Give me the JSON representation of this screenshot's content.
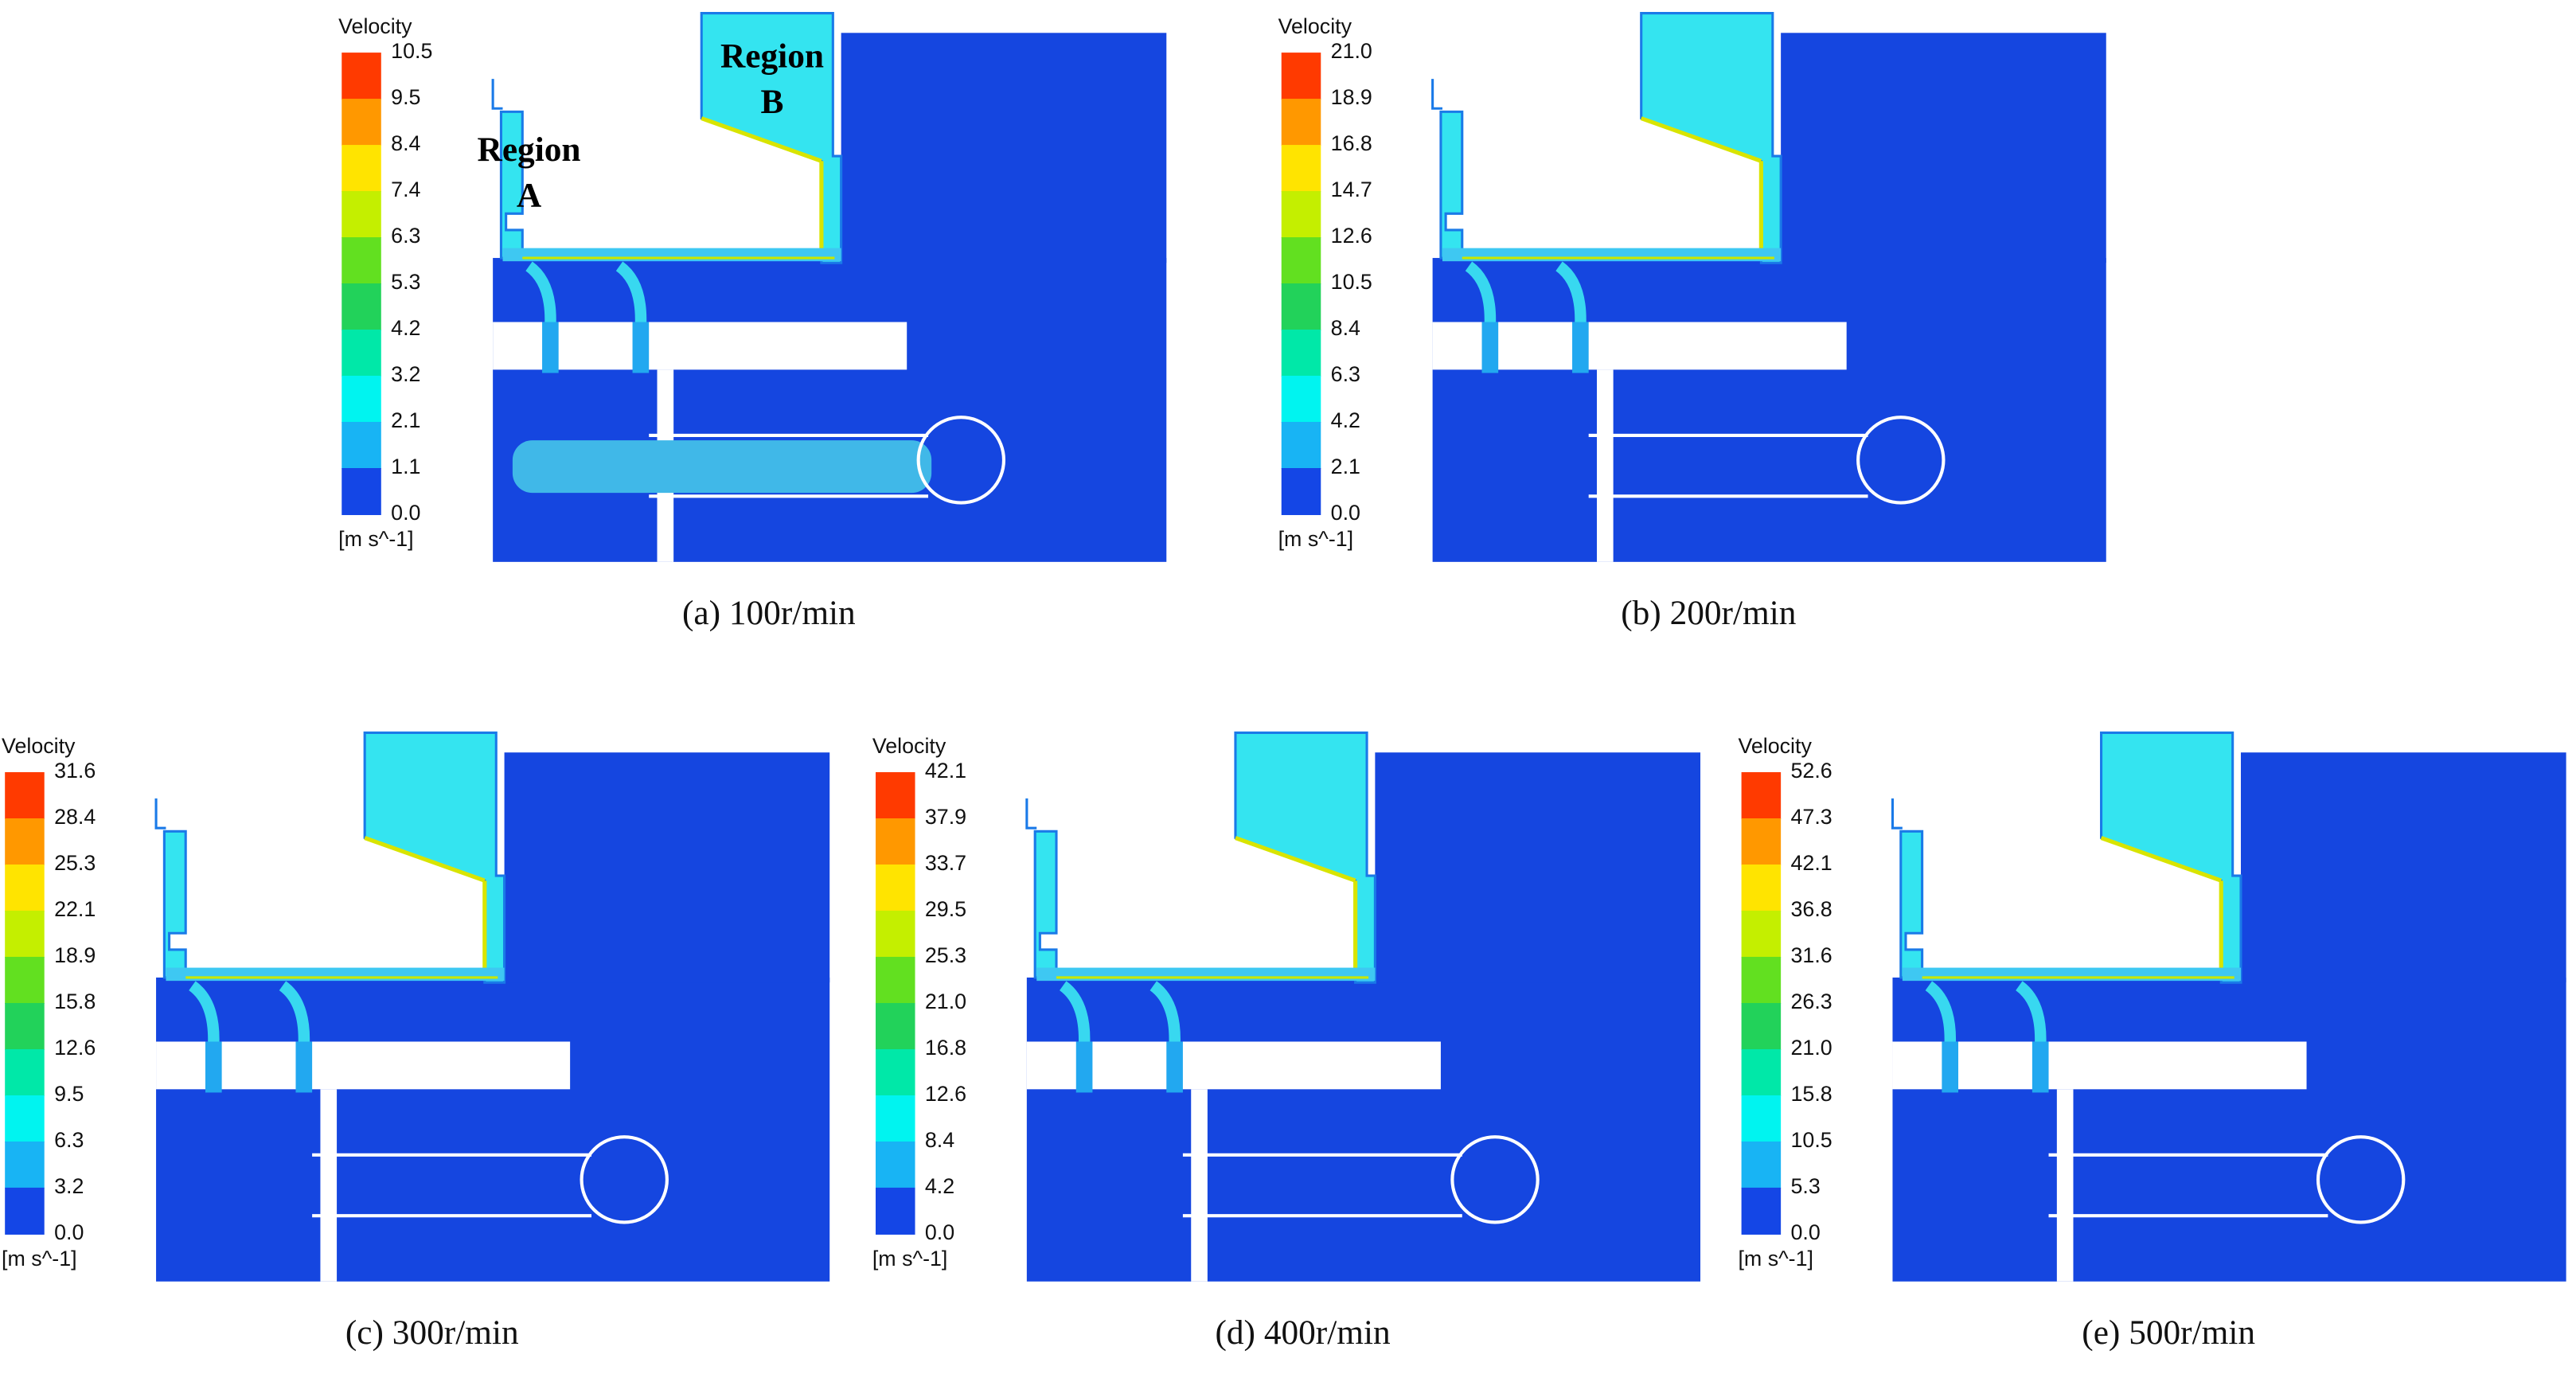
{
  "panels": [
    {
      "legend": {
        "title": "Velocity",
        "ticks": [
          "10.5",
          "9.5",
          "8.4",
          "7.4",
          "6.3",
          "5.3",
          "4.2",
          "3.2",
          "2.1",
          "1.1",
          "0.0"
        ],
        "unit": "[m s^-1]"
      },
      "caption": "(a) 100r/min",
      "regions": [
        {
          "lines": [
            "Region",
            "A"
          ]
        },
        {
          "lines": [
            "Region",
            "B"
          ]
        }
      ]
    },
    {
      "legend": {
        "title": "Velocity",
        "ticks": [
          "21.0",
          "18.9",
          "16.8",
          "14.7",
          "12.6",
          "10.5",
          "8.4",
          "6.3",
          "4.2",
          "2.1",
          "0.0"
        ],
        "unit": "[m s^-1]"
      },
      "caption": "(b) 200r/min"
    },
    {
      "legend": {
        "title": "Velocity",
        "ticks": [
          "31.6",
          "28.4",
          "25.3",
          "22.1",
          "18.9",
          "15.8",
          "12.6",
          "9.5",
          "6.3",
          "3.2",
          "0.0"
        ],
        "unit": "[m s^-1]"
      },
      "caption": "(c) 300r/min"
    },
    {
      "legend": {
        "title": "Velocity",
        "ticks": [
          "42.1",
          "37.9",
          "33.7",
          "29.5",
          "25.3",
          "21.0",
          "16.8",
          "12.6",
          "8.4",
          "4.2",
          "0.0"
        ],
        "unit": "[m s^-1]"
      },
      "caption": "(d) 400r/min"
    },
    {
      "legend": {
        "title": "Velocity",
        "ticks": [
          "52.6",
          "47.3",
          "42.1",
          "36.8",
          "31.6",
          "26.3",
          "21.0",
          "15.8",
          "10.5",
          "5.3",
          "0.0"
        ],
        "unit": "[m s^-1]"
      },
      "caption": "(e) 500r/min"
    }
  ]
}
